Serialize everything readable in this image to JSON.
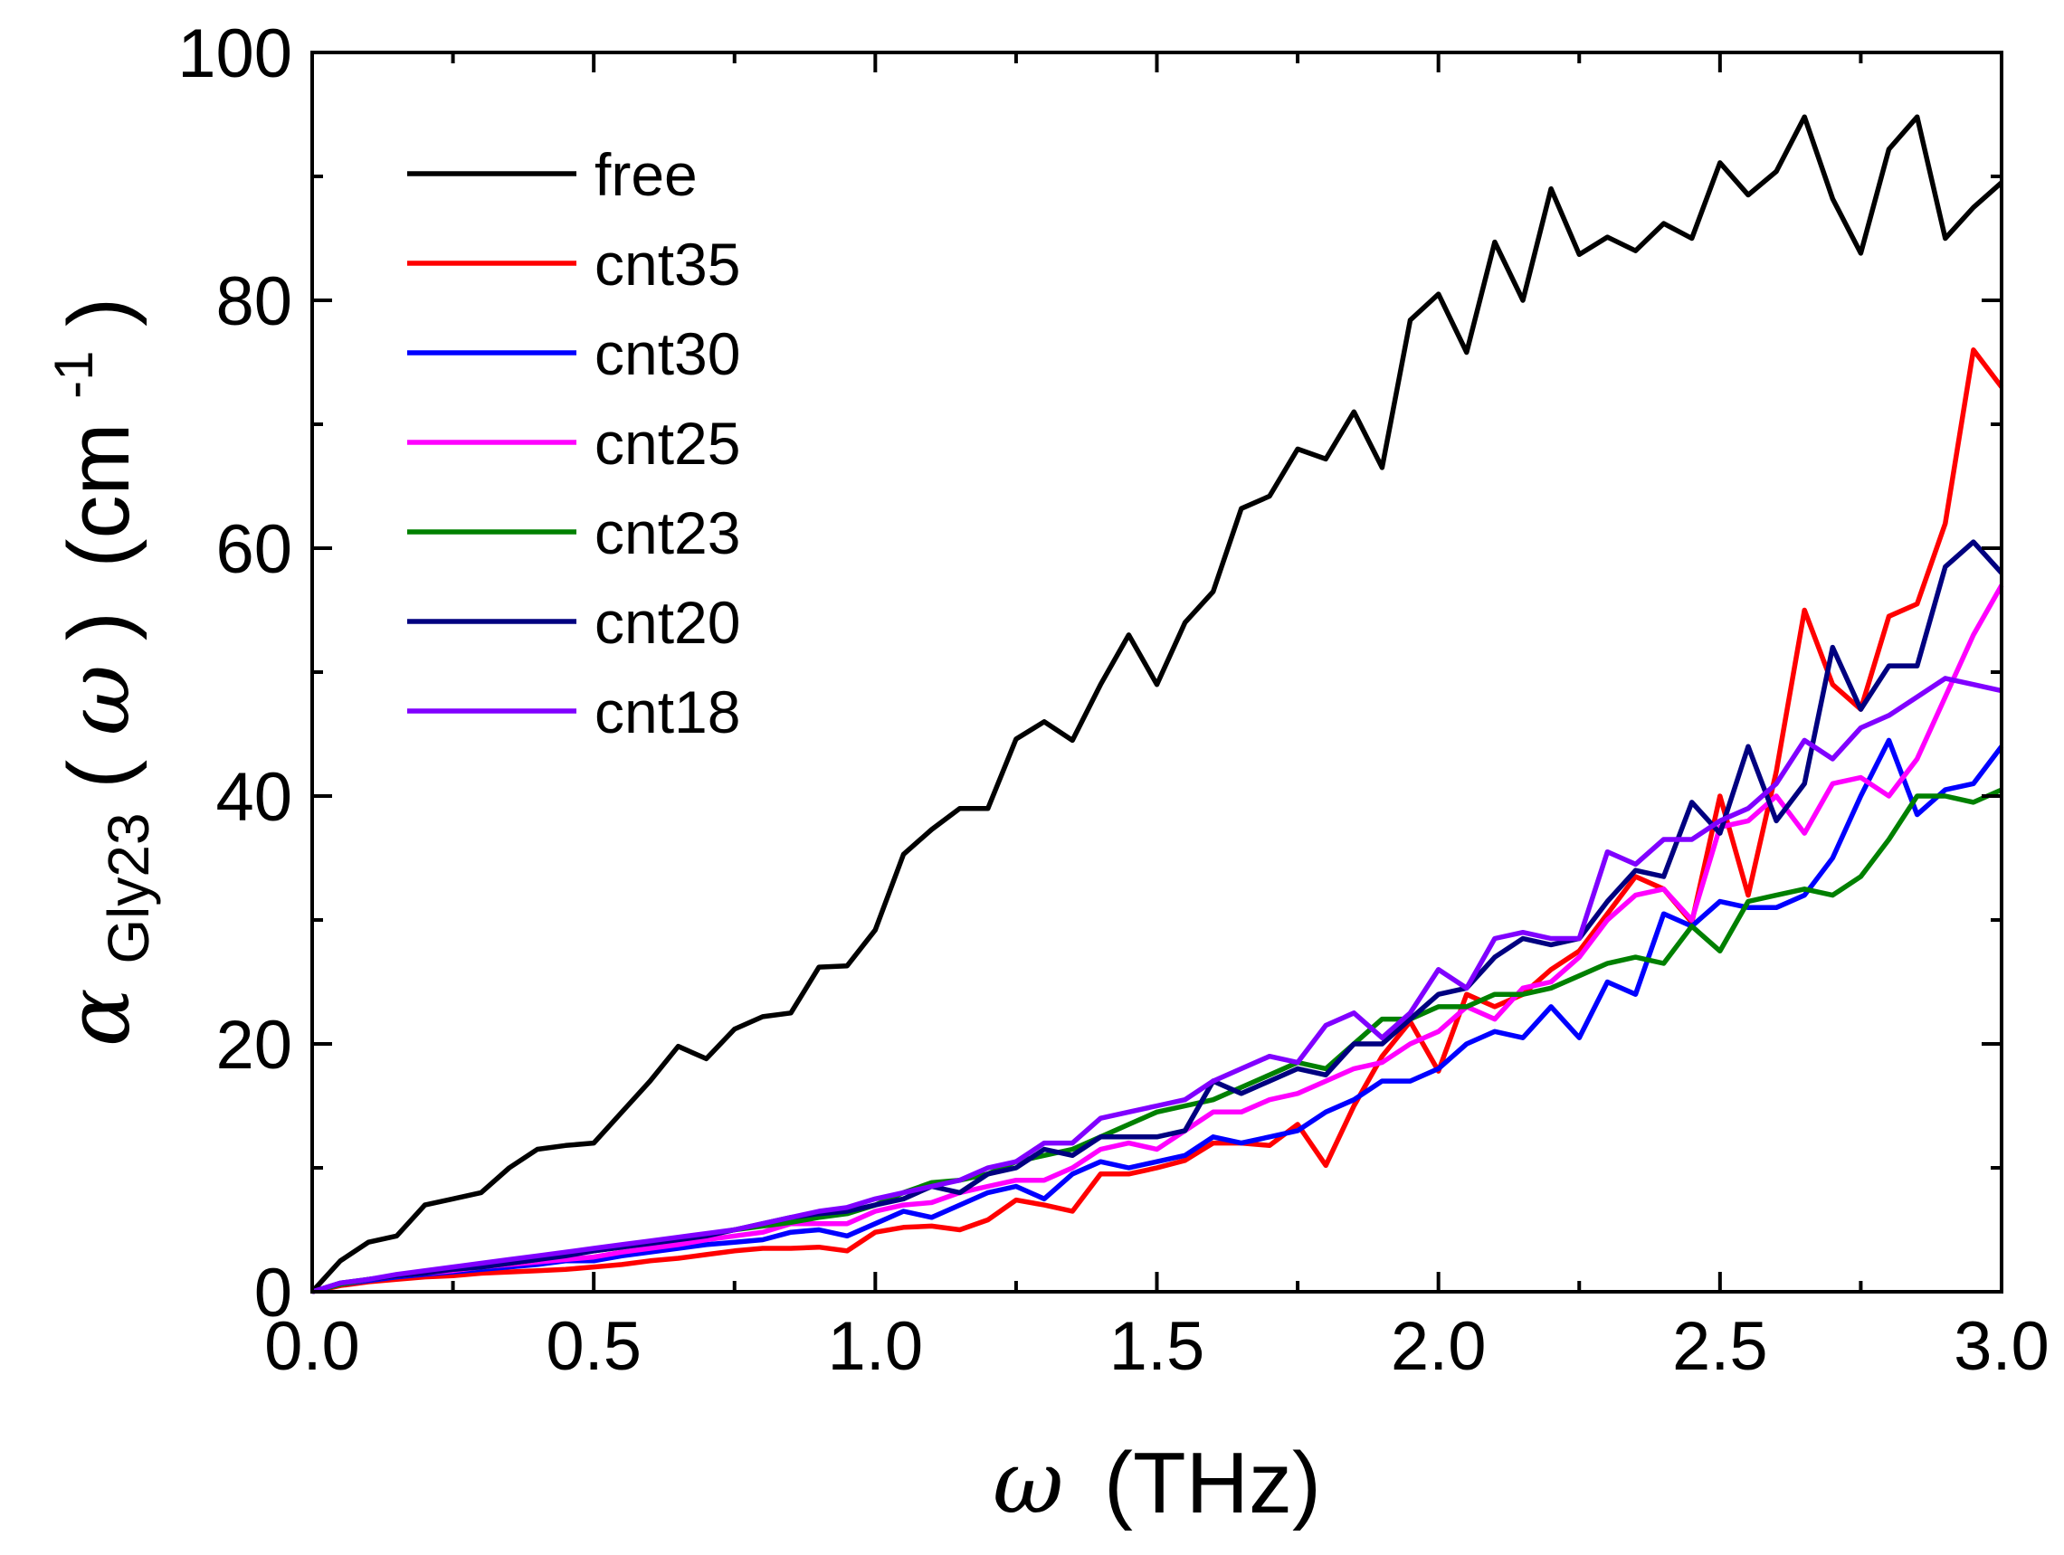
{
  "chart_data": {
    "type": "line",
    "x_axis": {
      "symbol": "ω",
      "label_unit": "(THz)",
      "range": [
        0.0,
        3.0
      ],
      "ticks": [
        "0.0",
        "0.5",
        "1.0",
        "1.5",
        "2.0",
        "2.5",
        "3.0"
      ],
      "tick_values": [
        0.0,
        0.5,
        1.0,
        1.5,
        2.0,
        2.5,
        3.0
      ]
    },
    "y_axis": {
      "symbol": "α",
      "subscript": "Gly23",
      "argument_open": "(",
      "argument_symbol": "ω",
      "argument_close": ")",
      "unit_text": "(cm",
      "unit_superscript": "-1",
      "unit_close": ")",
      "range": [
        0,
        100
      ],
      "ticks": [
        "0",
        "20",
        "40",
        "60",
        "80",
        "100"
      ],
      "tick_values": [
        0,
        20,
        40,
        60,
        80,
        100
      ]
    },
    "legend_position": "top-left",
    "grid": false,
    "x": [
      0.0,
      0.05,
      0.1,
      0.15,
      0.2,
      0.25,
      0.3,
      0.35,
      0.4,
      0.45,
      0.5,
      0.55,
      0.6,
      0.65,
      0.7,
      0.75,
      0.8,
      0.85,
      0.9,
      0.95,
      1.0,
      1.05,
      1.1,
      1.15,
      1.2,
      1.25,
      1.3,
      1.35,
      1.4,
      1.45,
      1.5,
      1.55,
      1.6,
      1.65,
      1.7,
      1.75,
      1.8,
      1.85,
      1.9,
      1.95,
      2.0,
      2.05,
      2.1,
      2.15,
      2.2,
      2.25,
      2.3,
      2.35,
      2.4,
      2.45,
      2.5,
      2.55,
      2.6,
      2.65,
      2.7,
      2.75,
      2.8,
      2.85,
      2.9,
      2.95,
      3.0
    ],
    "series": [
      {
        "name": "free",
        "color": "#000000",
        "values": [
          0,
          2.5,
          4,
          4.5,
          7,
          7.5,
          8,
          10,
          11.5,
          11.8,
          12,
          14.5,
          17,
          19.8,
          18.8,
          21.2,
          22.2,
          22.5,
          26.2,
          26.3,
          29.2,
          35.3,
          37.3,
          39,
          39,
          44.6,
          46,
          44.5,
          49,
          53,
          49,
          54,
          56.5,
          63.2,
          64.2,
          68,
          67.2,
          71,
          66.5,
          78.4,
          80.5,
          75.8,
          84.7,
          80,
          89,
          83.7,
          85.1,
          84,
          86.2,
          85,
          91.1,
          88.5,
          90.4,
          94.8,
          88.2,
          83.8,
          92.2,
          94.8,
          85,
          87.5,
          89.5
        ]
      },
      {
        "name": "cnt35",
        "color": "#ff0000",
        "values": [
          0,
          0.5,
          0.8,
          1.0,
          1.2,
          1.3,
          1.5,
          1.6,
          1.7,
          1.8,
          2.0,
          2.2,
          2.5,
          2.7,
          3.0,
          3.3,
          3.5,
          3.5,
          3.6,
          3.3,
          4.8,
          5.2,
          5.3,
          5.0,
          5.8,
          7.4,
          7.0,
          6.5,
          9.5,
          9.5,
          10.0,
          10.6,
          12.0,
          12.0,
          11.8,
          13.5,
          10.2,
          15.0,
          19.0,
          21.8,
          17.8,
          24.0,
          23.0,
          24.0,
          26.0,
          27.5,
          30.5,
          33.5,
          32.5,
          29.8,
          40.0,
          32.0,
          42.0,
          55.0,
          49.0,
          47.0,
          54.5,
          55.5,
          62.0,
          76.0,
          73.0
        ]
      },
      {
        "name": "cnt30",
        "color": "#0000ff",
        "values": [
          0,
          0.6,
          0.9,
          1.2,
          1.4,
          1.6,
          1.8,
          2.0,
          2.2,
          2.5,
          2.5,
          2.9,
          3.2,
          3.5,
          3.8,
          4.0,
          4.2,
          4.8,
          5.0,
          4.5,
          5.5,
          6.5,
          6.0,
          7.0,
          8.0,
          8.5,
          7.5,
          9.5,
          10.5,
          10.0,
          10.5,
          11.0,
          12.5,
          12.0,
          12.5,
          13.0,
          14.5,
          15.5,
          17.0,
          17.0,
          18.0,
          20.0,
          21.0,
          20.5,
          23.0,
          20.5,
          25.0,
          24.0,
          30.5,
          29.5,
          31.5,
          31.0,
          31.0,
          32.0,
          35.0,
          40.0,
          44.5,
          38.5,
          40.5,
          41.0,
          44.0
        ]
      },
      {
        "name": "cnt25",
        "color": "#ff00ff",
        "values": [
          0,
          0.6,
          1.0,
          1.3,
          1.5,
          1.7,
          2.0,
          2.2,
          2.4,
          2.6,
          2.8,
          3.2,
          3.5,
          3.8,
          4.2,
          4.5,
          4.8,
          5.5,
          5.5,
          5.5,
          6.5,
          7.0,
          7.2,
          8.0,
          8.5,
          9.0,
          9.0,
          10.0,
          11.5,
          12.0,
          11.5,
          13.0,
          14.5,
          14.5,
          15.5,
          16.0,
          17.0,
          18.0,
          18.5,
          20.0,
          21.0,
          23.0,
          22.0,
          24.5,
          25.0,
          27.0,
          30.0,
          32.0,
          32.5,
          30.0,
          37.5,
          38.0,
          40.0,
          37.0,
          41.0,
          41.5,
          40.0,
          43.0,
          48.0,
          53.0,
          57.0
        ]
      },
      {
        "name": "cnt23",
        "color": "#008000",
        "values": [
          0,
          0.6,
          1.0,
          1.3,
          1.6,
          1.8,
          2.0,
          2.3,
          2.6,
          3.0,
          3.3,
          3.6,
          4.0,
          4.3,
          4.6,
          5.0,
          5.3,
          5.6,
          6.0,
          6.3,
          7.0,
          8.0,
          8.8,
          9.0,
          9.5,
          10.5,
          11.0,
          11.5,
          12.5,
          13.5,
          14.5,
          15.0,
          15.5,
          16.5,
          17.5,
          18.5,
          18.0,
          20.0,
          22.0,
          22.0,
          23.0,
          23.0,
          24.0,
          24.0,
          24.5,
          25.5,
          26.5,
          27.0,
          26.5,
          29.5,
          27.5,
          31.5,
          32.0,
          32.5,
          32.0,
          33.5,
          36.5,
          40.0,
          40.0,
          39.5,
          40.5
        ]
      },
      {
        "name": "cnt20",
        "color": "#000080",
        "values": [
          0,
          0.7,
          1.0,
          1.3,
          1.5,
          1.8,
          2.0,
          2.3,
          2.6,
          2.9,
          3.3,
          3.6,
          3.9,
          4.2,
          4.5,
          5.0,
          5.5,
          6.0,
          6.3,
          6.5,
          7.0,
          7.5,
          8.5,
          8.0,
          9.5,
          10.0,
          11.5,
          11.0,
          12.5,
          12.5,
          12.5,
          13.0,
          17.0,
          16.0,
          17.0,
          18.0,
          17.5,
          20.0,
          20.0,
          22.0,
          24.0,
          24.5,
          27.0,
          28.5,
          28.0,
          28.5,
          31.5,
          34.0,
          33.5,
          39.5,
          37.0,
          44.0,
          38.0,
          41.0,
          52.0,
          47.0,
          50.5,
          50.5,
          58.5,
          60.5,
          58.0
        ]
      },
      {
        "name": "cnt18",
        "color": "#8000ff",
        "values": [
          0,
          0.7,
          1.0,
          1.4,
          1.7,
          2.0,
          2.3,
          2.6,
          2.9,
          3.2,
          3.5,
          3.8,
          4.1,
          4.4,
          4.7,
          5.0,
          5.5,
          6.0,
          6.5,
          6.8,
          7.5,
          8.0,
          8.5,
          9.0,
          10.0,
          10.5,
          12.0,
          12.0,
          14.0,
          14.5,
          15.0,
          15.5,
          17.0,
          18.0,
          19.0,
          18.5,
          21.5,
          22.5,
          20.5,
          22.5,
          26.0,
          24.5,
          28.5,
          29.0,
          28.5,
          28.5,
          35.5,
          34.5,
          36.5,
          36.5,
          38.0,
          39.0,
          41.0,
          44.5,
          43.0,
          45.5,
          46.5,
          48.0,
          49.5,
          49.0,
          48.5
        ]
      }
    ]
  }
}
